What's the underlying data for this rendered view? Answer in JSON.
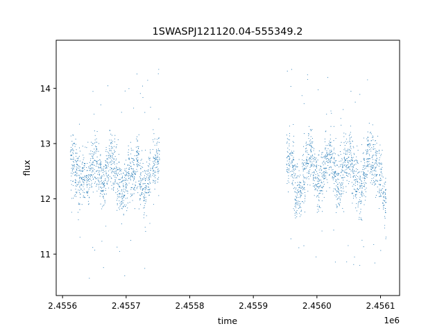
{
  "chart_data": {
    "type": "scatter",
    "title": "1SWASPJ121120.04-555349.2",
    "xlabel": "time",
    "ylabel": "flux",
    "x_offset_label": "1e6",
    "xlim": [
      2455590.0,
      2456130.0
    ],
    "ylim": [
      10.25,
      14.87
    ],
    "x_ticks": [
      2455600,
      2455700,
      2455800,
      2455900,
      2456000,
      2456100
    ],
    "x_tick_labels": [
      "2.4556",
      "2.4557",
      "2.4558",
      "2.4559",
      "2.4560",
      "2.4561"
    ],
    "y_ticks": [
      11,
      12,
      13,
      14
    ],
    "y_tick_labels": [
      "11",
      "12",
      "13",
      "14"
    ],
    "grid": false,
    "marker_color": "#1f77b4",
    "series": [
      {
        "observing_nights": [
          {
            "x": 2455615,
            "y": 12.65
          },
          {
            "x": 2455621,
            "y": 12.55
          },
          {
            "x": 2455627,
            "y": 12.35
          },
          {
            "x": 2455633,
            "y": 12.45
          },
          {
            "x": 2455640,
            "y": 12.3
          },
          {
            "x": 2455646,
            "y": 12.6
          },
          {
            "x": 2455652,
            "y": 12.7
          },
          {
            "x": 2455658,
            "y": 12.4
          },
          {
            "x": 2455664,
            "y": 12.2
          },
          {
            "x": 2455670,
            "y": 12.55
          },
          {
            "x": 2455676,
            "y": 12.75
          },
          {
            "x": 2455682,
            "y": 12.6
          },
          {
            "x": 2455688,
            "y": 12.3
          },
          {
            "x": 2455694,
            "y": 12.1
          },
          {
            "x": 2455700,
            "y": 12.25
          },
          {
            "x": 2455706,
            "y": 12.55
          },
          {
            "x": 2455712,
            "y": 12.45
          },
          {
            "x": 2455718,
            "y": 12.7
          },
          {
            "x": 2455724,
            "y": 12.35
          },
          {
            "x": 2455730,
            "y": 12.15
          },
          {
            "x": 2455736,
            "y": 12.5
          },
          {
            "x": 2455744,
            "y": 12.6
          },
          {
            "x": 2455750,
            "y": 12.7
          },
          {
            "x": 2455955,
            "y": 12.7
          },
          {
            "x": 2455961,
            "y": 12.6
          },
          {
            "x": 2455967,
            "y": 12.2
          },
          {
            "x": 2455973,
            "y": 12.05
          },
          {
            "x": 2455979,
            "y": 12.4
          },
          {
            "x": 2455985,
            "y": 12.75
          },
          {
            "x": 2455991,
            "y": 12.8
          },
          {
            "x": 2455997,
            "y": 12.5
          },
          {
            "x": 2456003,
            "y": 12.2
          },
          {
            "x": 2456009,
            "y": 12.45
          },
          {
            "x": 2456015,
            "y": 12.7
          },
          {
            "x": 2456021,
            "y": 12.8
          },
          {
            "x": 2456027,
            "y": 12.55
          },
          {
            "x": 2456033,
            "y": 12.25
          },
          {
            "x": 2456039,
            "y": 12.35
          },
          {
            "x": 2456045,
            "y": 12.65
          },
          {
            "x": 2456051,
            "y": 12.75
          },
          {
            "x": 2456057,
            "y": 12.5
          },
          {
            "x": 2456063,
            "y": 12.3
          },
          {
            "x": 2456069,
            "y": 12.15
          },
          {
            "x": 2456075,
            "y": 12.45
          },
          {
            "x": 2456081,
            "y": 12.8
          },
          {
            "x": 2456087,
            "y": 12.7
          },
          {
            "x": 2456093,
            "y": 12.55
          },
          {
            "x": 2456100,
            "y": 12.45
          },
          {
            "x": 2456106,
            "y": 12.05
          }
        ],
        "night_spread": 0.45
      }
    ]
  }
}
